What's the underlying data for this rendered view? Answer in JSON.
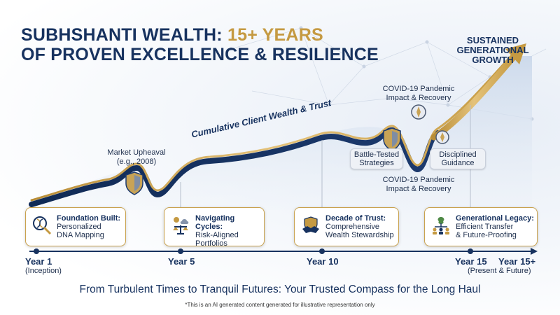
{
  "title_main": "SUBHSHANTI WEALTH: ",
  "title_highlight": "15+ YEARS",
  "title_line2": "OF PROVEN EXCELLENCE & RESILIENCE",
  "curve_label": "Cumulative Client Wealth & Trust",
  "peak_label": "SUSTAINED GENERATIONAL GROWTH",
  "annotations": {
    "market_upheaval": "Market Upheaval",
    "market_upheaval_sub": "(e.g., 2008)",
    "covid_top": "COVID-19 Pandemic Impact & Recovery",
    "covid_bottom": "COVID-19 Pandemic Impact & Recovery",
    "battle_tested": "Battle-Tested Strategies",
    "disciplined": "Disciplined Guidance"
  },
  "cards": [
    {
      "title": "Foundation Built:",
      "line1": "Personalized",
      "line2": "DNA Mapping",
      "icon": "dna-magnifier-icon"
    },
    {
      "title": "Navigating Cycles:",
      "line1": "Risk-Aligned",
      "line2": "Portfolios",
      "icon": "balance-scale-icon"
    },
    {
      "title": "Decade of Trust:",
      "line1": "Comprehensive",
      "line2": "Wealth Stewardship",
      "icon": "handshake-icon"
    },
    {
      "title": "Generational Legacy:",
      "line1": "Efficient Transfer",
      "line2": "& Future-Proofing",
      "icon": "family-tree-icon"
    }
  ],
  "timeline": [
    {
      "label": "Year 1",
      "sub": "(Inception)"
    },
    {
      "label": "Year 5",
      "sub": ""
    },
    {
      "label": "Year 10",
      "sub": ""
    },
    {
      "label": "Year 15",
      "sub": ""
    },
    {
      "label": "Year 15+",
      "sub": "(Present & Future)"
    }
  ],
  "footer": "From Turbulent Times to Tranquil Futures: Your Trusted Compass for the Long Haul",
  "disclaimer": "*This is an AI generated content generated for illustrative representation only",
  "colors": {
    "navy": "#17325f",
    "gold": "#c59a42",
    "area": "#dbe4f0"
  }
}
